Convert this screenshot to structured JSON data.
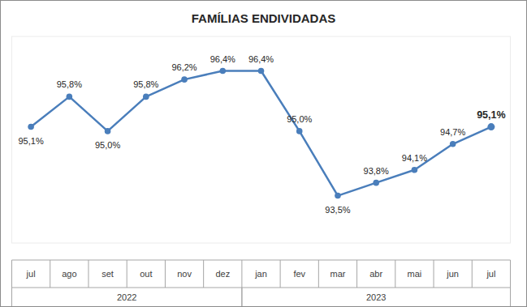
{
  "chart_data": {
    "type": "line",
    "title": "FAMÍLIAS ENDIVIDADAS",
    "categories": [
      "jul",
      "ago",
      "set",
      "out",
      "nov",
      "dez",
      "jan",
      "fev",
      "mar",
      "abr",
      "mai",
      "jun",
      "jul"
    ],
    "groups": [
      {
        "label": "2022",
        "count": 6
      },
      {
        "label": "2023",
        "count": 7
      }
    ],
    "values": [
      95.1,
      95.8,
      95.0,
      95.8,
      96.2,
      96.4,
      96.4,
      95.0,
      93.5,
      93.8,
      94.1,
      94.7,
      95.1
    ],
    "value_labels": [
      "95,1%",
      "95,8%",
      "95,0%",
      "95,8%",
      "96,2%",
      "96,4%",
      "96,4%",
      "95,0%",
      "93,5%",
      "93,8%",
      "94,1%",
      "94,7%",
      "95,1%"
    ],
    "color": "#4a7ebb",
    "marker": "circle",
    "line_style": "solid",
    "ylim": [
      92.4,
      97.2
    ],
    "yticks": [],
    "grid": false,
    "data_labels": true,
    "tick_labels": "x"
  }
}
